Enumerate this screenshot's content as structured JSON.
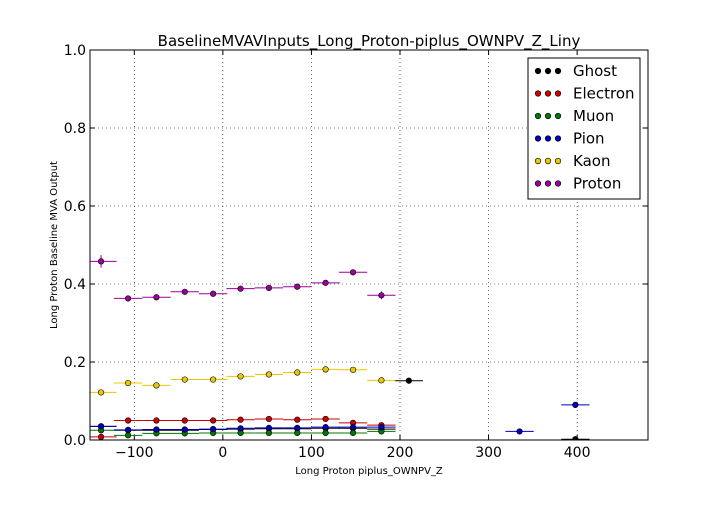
{
  "chart_data": {
    "type": "scatter",
    "title": "BaselineMVAVInputs_Long_Proton-piplus_OWNPV_Z_Liny",
    "xlabel": "Long Proton piplus_OWNPV_Z",
    "ylabel": "Long Proton Baseline MVA Output",
    "xlim": [
      -150,
      480
    ],
    "ylim": [
      0.0,
      1.0
    ],
    "x_ticks": [
      -100,
      0,
      100,
      200,
      300,
      400
    ],
    "x_tick_labels": [
      "−100",
      "0",
      "100",
      "200",
      "300",
      "400"
    ],
    "y_ticks": [
      0.0,
      0.2,
      0.4,
      0.6,
      0.8,
      1.0
    ],
    "y_tick_labels": [
      "0.0",
      "0.2",
      "0.4",
      "0.6",
      "0.8",
      "1.0"
    ],
    "grid": true,
    "legend_position": "top-right",
    "series": [
      {
        "name": "Ghost",
        "color": "#000000",
        "points": [
          {
            "x": -137.5,
            "y": 0.035,
            "xerr": 17.5,
            "yerr": 0.003
          },
          {
            "x": -107,
            "y": 0.025,
            "xerr": 16,
            "yerr": 0.002
          },
          {
            "x": -75,
            "y": 0.025,
            "xerr": 16,
            "yerr": 0.002
          },
          {
            "x": -43,
            "y": 0.025,
            "xerr": 16,
            "yerr": 0.002
          },
          {
            "x": -11,
            "y": 0.027,
            "xerr": 16,
            "yerr": 0.002
          },
          {
            "x": 20,
            "y": 0.028,
            "xerr": 16,
            "yerr": 0.002
          },
          {
            "x": 52,
            "y": 0.029,
            "xerr": 16,
            "yerr": 0.002
          },
          {
            "x": 84,
            "y": 0.029,
            "xerr": 16,
            "yerr": 0.002
          },
          {
            "x": 116,
            "y": 0.03,
            "xerr": 16,
            "yerr": 0.002
          },
          {
            "x": 147,
            "y": 0.03,
            "xerr": 16,
            "yerr": 0.002
          },
          {
            "x": 179,
            "y": 0.028,
            "xerr": 16,
            "yerr": 0.002
          },
          {
            "x": 210,
            "y": 0.152,
            "xerr": 16,
            "yerr": 0.004
          },
          {
            "x": 398,
            "y": 0.002,
            "xerr": 16,
            "yerr": 0.002
          }
        ]
      },
      {
        "name": "Electron",
        "color": "#cc0000",
        "points": [
          {
            "x": -137.5,
            "y": 0.008,
            "xerr": 17.5,
            "yerr": 0.003
          },
          {
            "x": -107,
            "y": 0.05,
            "xerr": 16,
            "yerr": 0.004
          },
          {
            "x": -75,
            "y": 0.05,
            "xerr": 16,
            "yerr": 0.003
          },
          {
            "x": -43,
            "y": 0.05,
            "xerr": 16,
            "yerr": 0.003
          },
          {
            "x": -11,
            "y": 0.05,
            "xerr": 16,
            "yerr": 0.003
          },
          {
            "x": 20,
            "y": 0.052,
            "xerr": 16,
            "yerr": 0.003
          },
          {
            "x": 52,
            "y": 0.054,
            "xerr": 16,
            "yerr": 0.003
          },
          {
            "x": 84,
            "y": 0.052,
            "xerr": 16,
            "yerr": 0.003
          },
          {
            "x": 116,
            "y": 0.054,
            "xerr": 16,
            "yerr": 0.003
          },
          {
            "x": 147,
            "y": 0.044,
            "xerr": 16,
            "yerr": 0.003
          },
          {
            "x": 179,
            "y": 0.038,
            "xerr": 16,
            "yerr": 0.004
          }
        ]
      },
      {
        "name": "Muon",
        "color": "#007700",
        "points": [
          {
            "x": -137.5,
            "y": 0.025,
            "xerr": 17.5,
            "yerr": 0.003
          },
          {
            "x": -107,
            "y": 0.012,
            "xerr": 16,
            "yerr": 0.002
          },
          {
            "x": -75,
            "y": 0.017,
            "xerr": 16,
            "yerr": 0.002
          },
          {
            "x": -43,
            "y": 0.017,
            "xerr": 16,
            "yerr": 0.002
          },
          {
            "x": -11,
            "y": 0.018,
            "xerr": 16,
            "yerr": 0.002
          },
          {
            "x": 20,
            "y": 0.018,
            "xerr": 16,
            "yerr": 0.002
          },
          {
            "x": 52,
            "y": 0.018,
            "xerr": 16,
            "yerr": 0.002
          },
          {
            "x": 84,
            "y": 0.018,
            "xerr": 16,
            "yerr": 0.002
          },
          {
            "x": 116,
            "y": 0.018,
            "xerr": 16,
            "yerr": 0.002
          },
          {
            "x": 147,
            "y": 0.018,
            "xerr": 16,
            "yerr": 0.002
          },
          {
            "x": 179,
            "y": 0.022,
            "xerr": 16,
            "yerr": 0.002
          }
        ]
      },
      {
        "name": "Pion",
        "color": "#0000bb",
        "points": [
          {
            "x": -137.5,
            "y": 0.035,
            "xerr": 17.5,
            "yerr": 0.003
          },
          {
            "x": -107,
            "y": 0.026,
            "xerr": 16,
            "yerr": 0.002
          },
          {
            "x": -75,
            "y": 0.027,
            "xerr": 16,
            "yerr": 0.002
          },
          {
            "x": -43,
            "y": 0.027,
            "xerr": 16,
            "yerr": 0.002
          },
          {
            "x": -11,
            "y": 0.028,
            "xerr": 16,
            "yerr": 0.002
          },
          {
            "x": 20,
            "y": 0.03,
            "xerr": 16,
            "yerr": 0.002
          },
          {
            "x": 52,
            "y": 0.031,
            "xerr": 16,
            "yerr": 0.002
          },
          {
            "x": 84,
            "y": 0.031,
            "xerr": 16,
            "yerr": 0.002
          },
          {
            "x": 116,
            "y": 0.033,
            "xerr": 16,
            "yerr": 0.002
          },
          {
            "x": 147,
            "y": 0.033,
            "xerr": 16,
            "yerr": 0.002
          },
          {
            "x": 179,
            "y": 0.033,
            "xerr": 16,
            "yerr": 0.002
          },
          {
            "x": 335,
            "y": 0.022,
            "xerr": 16,
            "yerr": 0.003
          },
          {
            "x": 398,
            "y": 0.09,
            "xerr": 16,
            "yerr": 0.004
          }
        ]
      },
      {
        "name": "Kaon",
        "color": "#e8c800",
        "points": [
          {
            "x": -137.5,
            "y": 0.122,
            "xerr": 17.5,
            "yerr": 0.005
          },
          {
            "x": -107,
            "y": 0.146,
            "xerr": 16,
            "yerr": 0.005
          },
          {
            "x": -75,
            "y": 0.14,
            "xerr": 16,
            "yerr": 0.004
          },
          {
            "x": -43,
            "y": 0.155,
            "xerr": 16,
            "yerr": 0.004
          },
          {
            "x": -11,
            "y": 0.155,
            "xerr": 16,
            "yerr": 0.004
          },
          {
            "x": 20,
            "y": 0.163,
            "xerr": 16,
            "yerr": 0.004
          },
          {
            "x": 52,
            "y": 0.168,
            "xerr": 16,
            "yerr": 0.004
          },
          {
            "x": 84,
            "y": 0.173,
            "xerr": 16,
            "yerr": 0.004
          },
          {
            "x": 116,
            "y": 0.181,
            "xerr": 16,
            "yerr": 0.004
          },
          {
            "x": 147,
            "y": 0.18,
            "xerr": 16,
            "yerr": 0.004
          },
          {
            "x": 179,
            "y": 0.153,
            "xerr": 16,
            "yerr": 0.005
          }
        ]
      },
      {
        "name": "Proton",
        "color": "#990099",
        "points": [
          {
            "x": -137.5,
            "y": 0.458,
            "xerr": 17.5,
            "yerr": 0.016
          },
          {
            "x": -107,
            "y": 0.363,
            "xerr": 16,
            "yerr": 0.006
          },
          {
            "x": -75,
            "y": 0.366,
            "xerr": 16,
            "yerr": 0.005
          },
          {
            "x": -43,
            "y": 0.38,
            "xerr": 16,
            "yerr": 0.005
          },
          {
            "x": -11,
            "y": 0.375,
            "xerr": 16,
            "yerr": 0.005
          },
          {
            "x": 20,
            "y": 0.388,
            "xerr": 16,
            "yerr": 0.005
          },
          {
            "x": 52,
            "y": 0.39,
            "xerr": 16,
            "yerr": 0.005
          },
          {
            "x": 84,
            "y": 0.393,
            "xerr": 16,
            "yerr": 0.005
          },
          {
            "x": 116,
            "y": 0.403,
            "xerr": 16,
            "yerr": 0.005
          },
          {
            "x": 147,
            "y": 0.43,
            "xerr": 16,
            "yerr": 0.005
          },
          {
            "x": 179,
            "y": 0.371,
            "xerr": 16,
            "yerr": 0.01
          }
        ]
      }
    ]
  }
}
